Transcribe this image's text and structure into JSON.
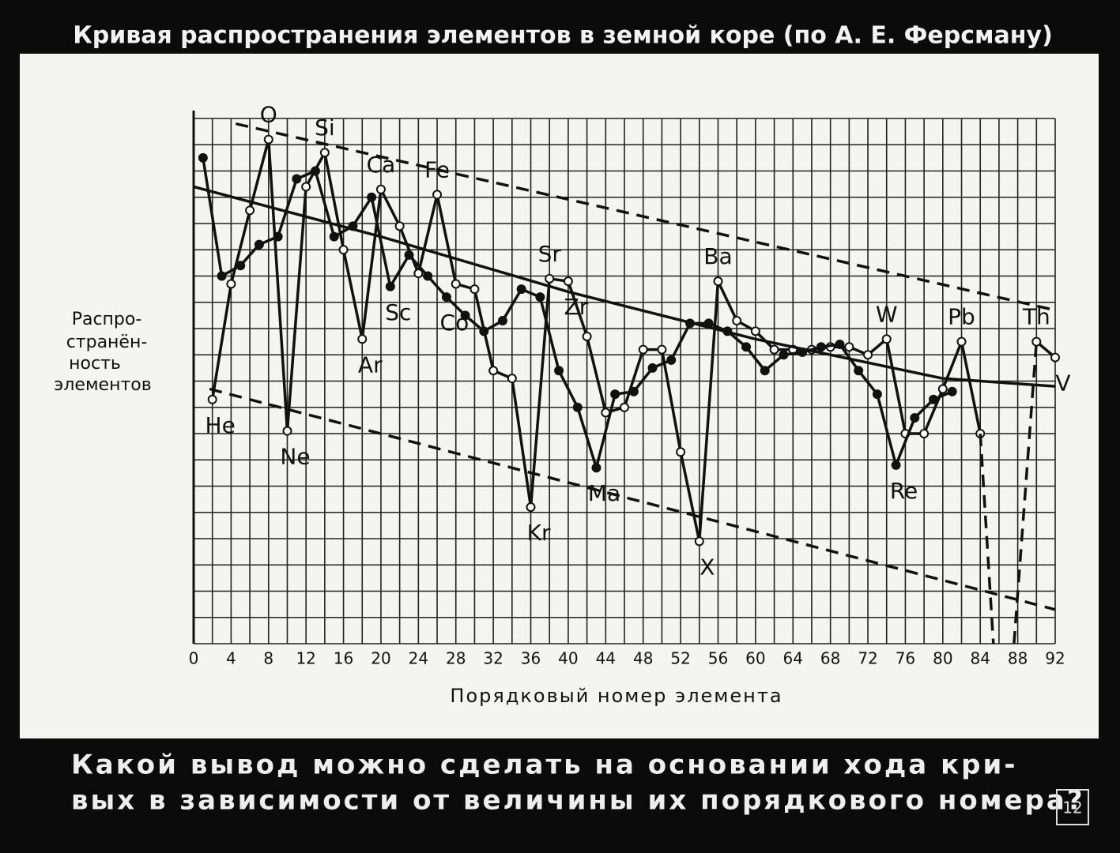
{
  "chart_data": {
    "type": "line",
    "title": "Кривая распространения элементов в земной коре (по А. Е. Ферсману)",
    "x_label": "Порядковый номер элемента",
    "y_label": [
      "Распро-",
      "странён-",
      "ность",
      "элементов"
    ],
    "xlim": [
      0,
      92
    ],
    "ylim": [
      0,
      20
    ],
    "xticks": [
      0,
      4,
      8,
      12,
      16,
      20,
      24,
      28,
      32,
      36,
      40,
      44,
      48,
      52,
      56,
      60,
      64,
      68,
      72,
      76,
      80,
      84,
      88,
      92
    ],
    "x_grid": [
      0,
      2,
      4,
      6,
      8,
      10,
      12,
      14,
      16,
      18,
      20,
      22,
      24,
      26,
      28,
      30,
      32,
      34,
      36,
      38,
      40,
      42,
      44,
      46,
      48,
      50,
      52,
      54,
      56,
      58,
      60,
      62,
      64,
      66,
      68,
      70,
      72,
      74,
      76,
      78,
      80,
      82,
      84,
      86,
      88,
      90,
      92
    ],
    "y_grid": [
      0,
      1,
      2,
      3,
      4,
      5,
      6,
      7,
      8,
      9,
      10,
      11,
      12,
      13,
      14,
      15,
      16,
      17,
      18,
      19,
      20
    ],
    "series": [
      {
        "line": "solid",
        "markers": "open",
        "x": [
          2,
          4,
          6,
          8,
          10,
          12,
          14,
          16,
          18,
          20,
          22,
          24,
          26,
          28,
          30,
          32,
          34,
          36,
          38,
          40,
          42,
          44,
          46,
          48,
          50,
          52,
          54,
          56,
          58,
          60,
          62,
          64,
          66,
          68,
          70,
          72,
          74,
          76,
          78,
          80,
          82,
          84
        ],
        "values": [
          9.3,
          13.7,
          16.5,
          19.2,
          8.1,
          17.4,
          18.7,
          15.0,
          11.6,
          17.3,
          15.9,
          14.1,
          17.1,
          13.7,
          13.5,
          10.4,
          10.1,
          5.2,
          13.9,
          13.8,
          11.7,
          8.8,
          9.0,
          11.2,
          11.2,
          7.3,
          3.9,
          13.8,
          12.3,
          11.9,
          11.2,
          11.2,
          11.2,
          11.3,
          11.3,
          11.0,
          11.6,
          8.0,
          8.0,
          9.7,
          11.5,
          8.0
        ],
        "point_labels": [
          "He",
          null,
          null,
          "O",
          "Ne",
          null,
          "Si",
          null,
          "Ar",
          "Ca",
          null,
          null,
          "Fe",
          null,
          null,
          null,
          null,
          "Kr",
          "Sr",
          "Zr",
          null,
          null,
          null,
          null,
          null,
          null,
          "X",
          "Ba",
          null,
          null,
          null,
          null,
          null,
          null,
          null,
          null,
          "W",
          null,
          null,
          null,
          "Pb",
          null
        ]
      },
      {
        "line": "solid",
        "markers": "filled",
        "x": [
          1,
          3,
          5,
          7,
          9,
          11,
          13,
          15,
          17,
          19,
          21,
          23,
          25,
          27,
          29,
          31,
          33,
          35,
          37,
          39,
          41,
          43,
          45,
          47,
          49,
          51,
          53,
          55,
          57,
          59,
          61,
          63,
          65,
          67,
          69,
          71,
          73,
          75,
          77,
          79,
          81
        ],
        "values": [
          18.5,
          14.0,
          14.4,
          15.2,
          15.5,
          17.7,
          18.0,
          15.5,
          15.9,
          17.0,
          13.6,
          14.8,
          14.0,
          13.2,
          12.5,
          11.9,
          12.3,
          13.5,
          13.2,
          10.4,
          9.0,
          6.7,
          9.5,
          9.6,
          10.5,
          10.8,
          12.2,
          12.2,
          11.9,
          11.3,
          10.4,
          11.0,
          11.1,
          11.3,
          11.4,
          10.4,
          9.5,
          6.8,
          8.6,
          9.3,
          9.6
        ],
        "point_labels": [
          null,
          null,
          null,
          null,
          null,
          null,
          null,
          null,
          null,
          null,
          "Sc",
          null,
          null,
          "Co",
          null,
          null,
          null,
          null,
          null,
          null,
          null,
          "Ma",
          null,
          null,
          null,
          null,
          null,
          null,
          null,
          null,
          null,
          null,
          null,
          null,
          null,
          null,
          null,
          "Re",
          null,
          null,
          null
        ]
      },
      {
        "line": "solid",
        "markers": "none",
        "x": [
          0,
          20,
          40,
          60,
          80,
          92
        ],
        "values": [
          17.4,
          15.5,
          13.4,
          11.6,
          10.1,
          9.8
        ]
      },
      {
        "line": "dashed",
        "markers": "none",
        "x": [
          4.5,
          92
        ],
        "values": [
          19.8,
          12.7
        ]
      },
      {
        "line": "dashed",
        "markers": "none",
        "x": [
          1.7,
          92
        ],
        "values": [
          9.7,
          1.3
        ]
      },
      {
        "line": "dashed",
        "markers": "none",
        "x": [
          84,
          85.4,
          86,
          87.6,
          90
        ],
        "values": [
          8.0,
          0,
          null,
          0,
          11.5
        ],
        "point_labels": [
          null,
          null,
          null,
          null,
          "Th"
        ]
      },
      {
        "line": "solid",
        "markers": "open",
        "x": [
          90,
          92
        ],
        "values": [
          11.5,
          10.9
        ],
        "point_labels": [
          null,
          "V"
        ]
      }
    ]
  },
  "question": [
    "Какой вывод можно сделать на основании хода кри-",
    "вых в зависимости от величины их порядкового номера?"
  ],
  "page_number": "12"
}
